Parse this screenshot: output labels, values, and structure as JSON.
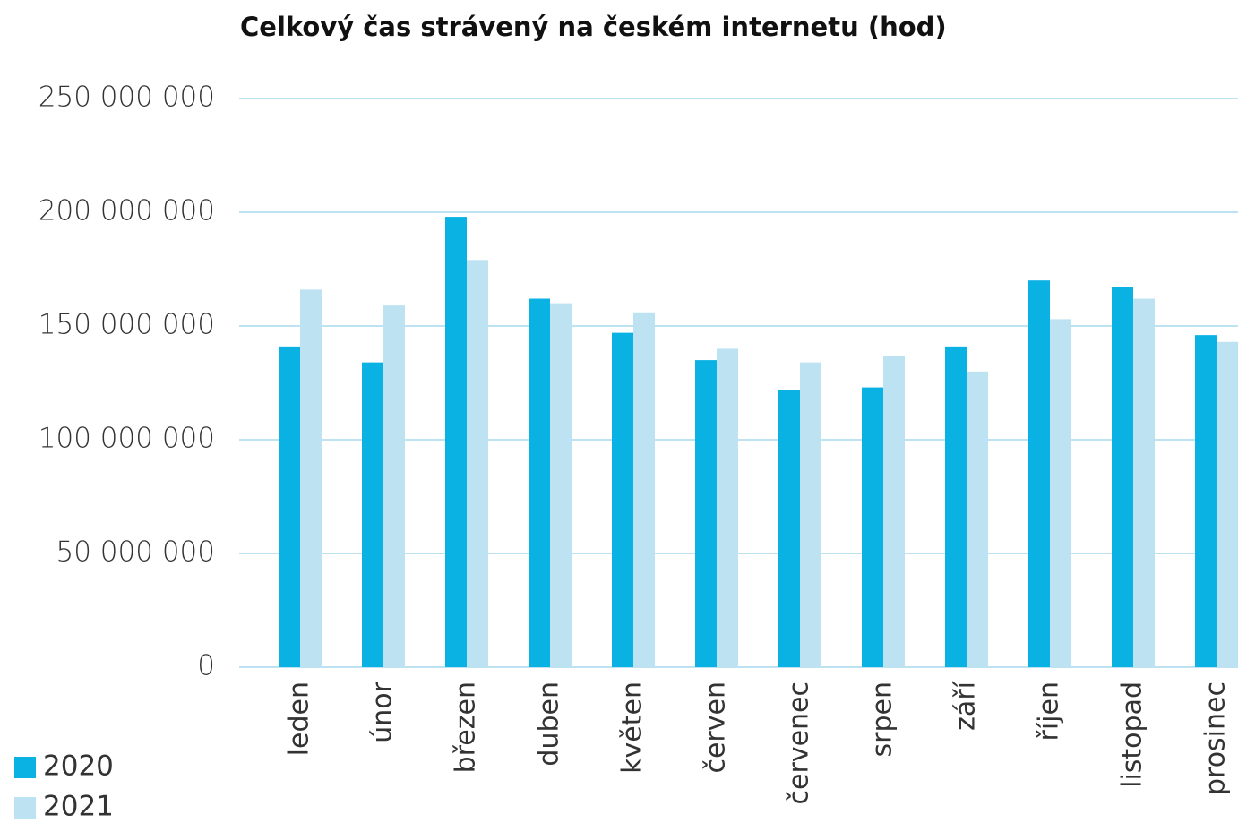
{
  "chart_data": {
    "type": "bar",
    "title": "Celkový čas strávený na českém internetu (hod)",
    "categories": [
      "leden",
      "únor",
      "březen",
      "duben",
      "květen",
      "červen",
      "červenec",
      "srpen",
      "září",
      "říjen",
      "listopad",
      "prosinec"
    ],
    "series": [
      {
        "name": "2020",
        "color": "#0ab1e3",
        "values": [
          141000000,
          134000000,
          198000000,
          162000000,
          147000000,
          135000000,
          122000000,
          123000000,
          141000000,
          170000000,
          167000000,
          146000000
        ]
      },
      {
        "name": "2021",
        "color": "#bde3f3",
        "values": [
          166000000,
          159000000,
          179000000,
          160000000,
          156000000,
          140000000,
          134000000,
          137000000,
          130000000,
          153000000,
          162000000,
          143000000
        ]
      }
    ],
    "ylim": [
      0,
      250000000
    ],
    "yticks": [
      0,
      {
        "value": 50000000,
        "label": "50 000 000"
      },
      {
        "value": 100000000,
        "label": "100 000 000"
      },
      {
        "value": 150000000,
        "label": "150 000 000"
      },
      {
        "value": 200000000,
        "label": "200 000 000"
      },
      {
        "value": 250000000,
        "label": "250 000 000"
      }
    ],
    "grid": true,
    "legend": "bottom-left"
  }
}
